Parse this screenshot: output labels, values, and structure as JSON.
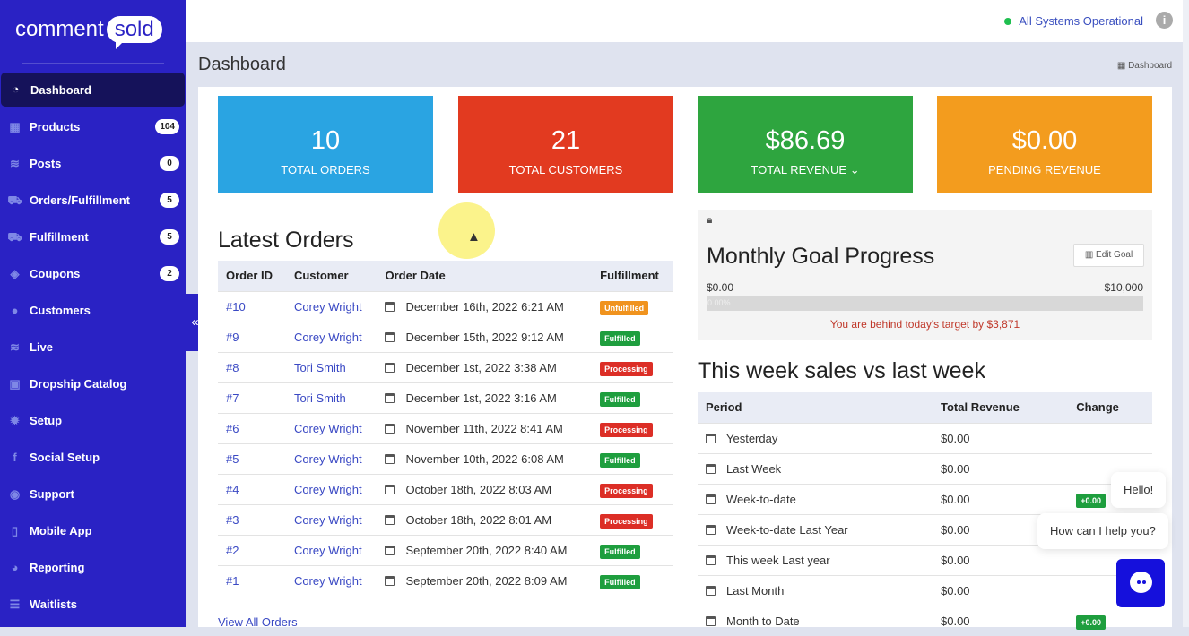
{
  "brand": {
    "part1": "comment",
    "part2": "sold"
  },
  "sidebar": {
    "items": [
      {
        "label": "Dashboard",
        "icon": "dashboard-icon",
        "g": "◔"
      },
      {
        "label": "Products",
        "icon": "grid-icon",
        "g": "▦",
        "badge": "104"
      },
      {
        "label": "Posts",
        "icon": "rss-icon",
        "g": "≋",
        "badge": "0"
      },
      {
        "label": "Orders/Fulfillment",
        "icon": "truck-icon",
        "g": "⛟",
        "badge": "5"
      },
      {
        "label": "Fulfillment",
        "icon": "truck-icon",
        "g": "⛟",
        "badge": "5"
      },
      {
        "label": "Coupons",
        "icon": "ticket-icon",
        "g": "◈",
        "badge": "2"
      },
      {
        "label": "Customers",
        "icon": "user-icon",
        "g": "●"
      },
      {
        "label": "Live",
        "icon": "rss-icon",
        "g": "≋"
      },
      {
        "label": "Dropship Catalog",
        "icon": "catalog-icon",
        "g": "▣"
      },
      {
        "label": "Setup",
        "icon": "gears-icon",
        "g": "✹"
      },
      {
        "label": "Social Setup",
        "icon": "facebook-icon",
        "g": "f"
      },
      {
        "label": "Support",
        "icon": "comments-icon",
        "g": "◉"
      },
      {
        "label": "Mobile App",
        "icon": "mobile-icon",
        "g": "▯"
      },
      {
        "label": "Reporting",
        "icon": "pie-chart-icon",
        "g": "◕"
      },
      {
        "label": "Waitlists",
        "icon": "list-icon",
        "g": "☰"
      }
    ],
    "collapse": "«"
  },
  "topbar": {
    "status": "All Systems Operational",
    "info": "i"
  },
  "header": {
    "title": "Dashboard",
    "breadcrumb": "Dashboard"
  },
  "stats": [
    {
      "value": "10",
      "label": "TOTAL ORDERS",
      "color": "#2aa4e2"
    },
    {
      "value": "21",
      "label": "TOTAL CUSTOMERS",
      "color": "#e23a20"
    },
    {
      "value": "$86.69",
      "label": "TOTAL REVENUE ⌄",
      "color": "#2ea53f"
    },
    {
      "value": "$0.00",
      "label": "PENDING REVENUE",
      "color": "#f39c1e"
    }
  ],
  "orders": {
    "title": "Latest Orders",
    "columns": [
      "Order ID",
      "Customer",
      "Order Date",
      "Fulfillment"
    ],
    "rows": [
      [
        "#10",
        "Corey Wright",
        "December 16th, 2022 6:21 AM",
        "Unfulfilled"
      ],
      [
        "#9",
        "Corey Wright",
        "December 15th, 2022 9:12 AM",
        "Fulfilled"
      ],
      [
        "#8",
        "Tori Smith",
        "December 1st, 2022 3:38 AM",
        "Processing"
      ],
      [
        "#7",
        "Tori Smith",
        "December 1st, 2022 3:16 AM",
        "Fulfilled"
      ],
      [
        "#6",
        "Corey Wright",
        "November 11th, 2022 8:41 AM",
        "Processing"
      ],
      [
        "#5",
        "Corey Wright",
        "November 10th, 2022 6:08 AM",
        "Fulfilled"
      ],
      [
        "#4",
        "Corey Wright",
        "October 18th, 2022 8:03 AM",
        "Processing"
      ],
      [
        "#3",
        "Corey Wright",
        "October 18th, 2022 8:01 AM",
        "Processing"
      ],
      [
        "#2",
        "Corey Wright",
        "September 20th, 2022 8:40 AM",
        "Fulfilled"
      ],
      [
        "#1",
        "Corey Wright",
        "September 20th, 2022 8:09 AM",
        "Fulfilled"
      ]
    ],
    "view_all": "View All Orders",
    "status_colors": {
      "Unfulfilled": "#f0931e",
      "Fulfilled": "#1e9e3e",
      "Processing": "#dc2e26"
    }
  },
  "goal": {
    "title": "Monthly Goal Progress",
    "edit": "Edit Goal",
    "min": "$0.00",
    "max": "$10,000",
    "progress_pct": "0.00%",
    "progress": 0,
    "message": "You are behind today's target by $3,871"
  },
  "week": {
    "title": "This week sales vs last week",
    "columns": [
      "Period",
      "Total Revenue",
      "Change"
    ],
    "rows": [
      [
        "Yesterday",
        "$0.00",
        ""
      ],
      [
        "Last Week",
        "$0.00",
        ""
      ],
      [
        "Week-to-date",
        "$0.00",
        "+0.00"
      ],
      [
        "Week-to-date Last Year",
        "$0.00",
        ""
      ],
      [
        "This week Last year",
        "$0.00",
        ""
      ],
      [
        "Last Month",
        "$0.00",
        ""
      ],
      [
        "Month to Date",
        "$0.00",
        "+0.00"
      ]
    ]
  },
  "chat": {
    "hello": "Hello!",
    "help": "How can I help you?"
  }
}
